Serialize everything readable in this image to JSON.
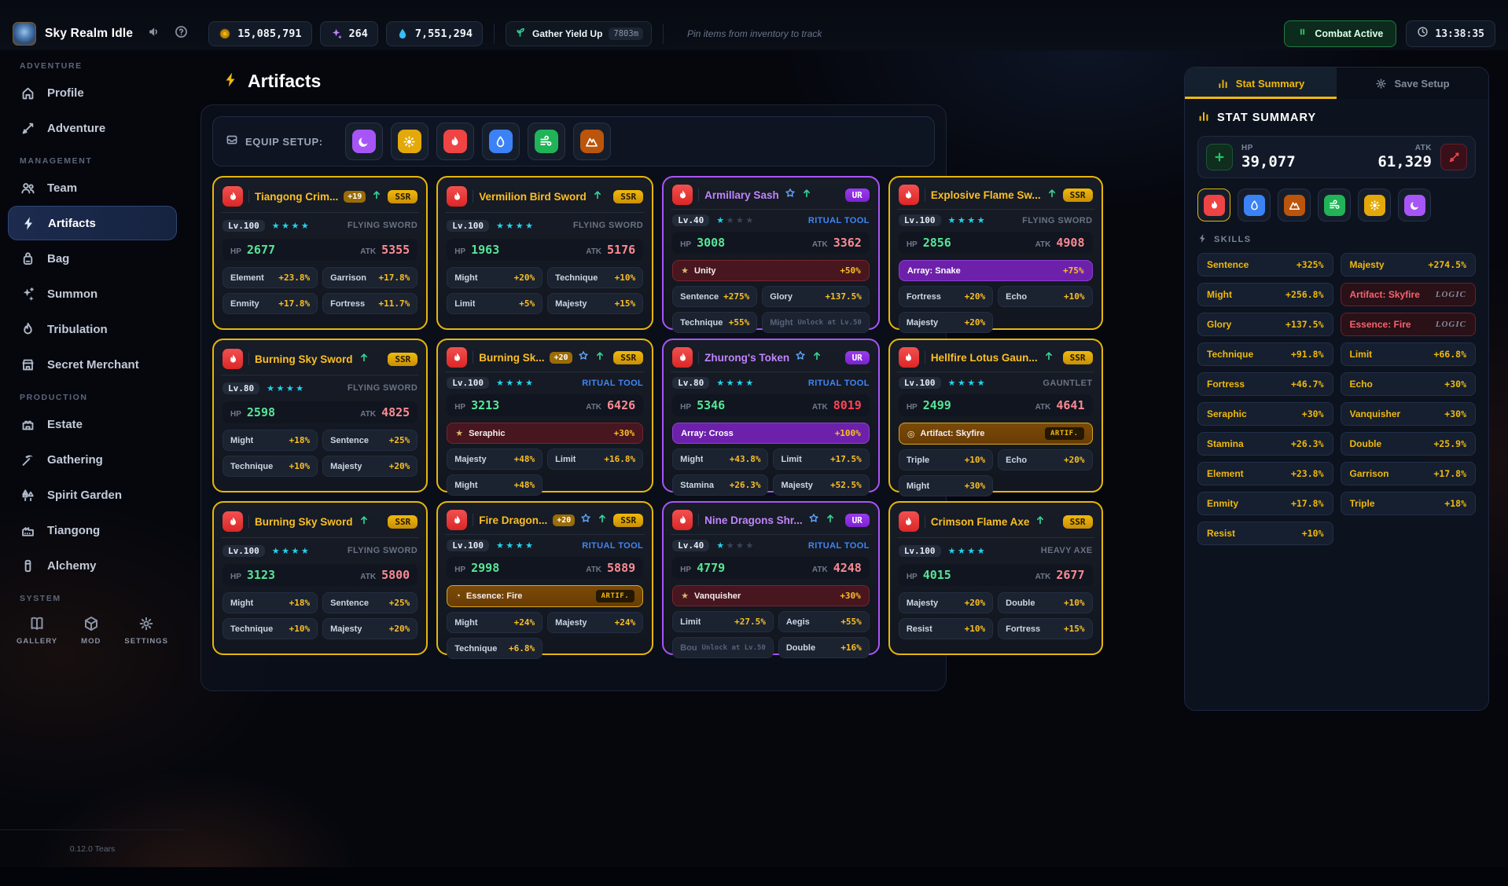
{
  "app": {
    "title": "Sky Realm Idle",
    "version": "0.12.0 Tears"
  },
  "element_colors": {
    "fire": "#ef4444",
    "water": "#3b82f6",
    "wind": "#21b357",
    "sun": "#e3a90a",
    "moon": "#a855f7",
    "earth": "#bb550b"
  },
  "topbar": {
    "currencies": [
      {
        "icon": "coin",
        "value": "15,085,791"
      },
      {
        "icon": "spark",
        "value": "264"
      },
      {
        "icon": "droplet",
        "value": "7,551,294"
      }
    ],
    "gather": {
      "label": "Gather Yield Up",
      "badge": "7803m"
    },
    "pin_hint": "Pin items from inventory to track",
    "combat": {
      "label": "Combat Active"
    },
    "clock": "13:38:35"
  },
  "sidebar": {
    "sections": [
      {
        "label": "ADVENTURE",
        "items": [
          {
            "icon": "home",
            "label": "Profile"
          },
          {
            "icon": "sword",
            "label": "Adventure"
          }
        ]
      },
      {
        "label": "MANAGEMENT",
        "items": [
          {
            "icon": "team",
            "label": "Team"
          },
          {
            "icon": "zap",
            "label": "Artifacts",
            "active": true
          },
          {
            "icon": "bag",
            "label": "Bag"
          },
          {
            "icon": "sparkles",
            "label": "Summon"
          },
          {
            "icon": "flame",
            "label": "Tribulation"
          },
          {
            "icon": "store",
            "label": "Secret Merchant"
          }
        ]
      },
      {
        "label": "PRODUCTION",
        "items": [
          {
            "icon": "castle",
            "label": "Estate"
          },
          {
            "icon": "pickaxe",
            "label": "Gathering"
          },
          {
            "icon": "tree",
            "label": "Spirit Garden"
          },
          {
            "icon": "factory",
            "label": "Tiangong"
          },
          {
            "icon": "flask",
            "label": "Alchemy"
          }
        ]
      }
    ],
    "system": {
      "label": "SYSTEM",
      "items": [
        {
          "icon": "book",
          "label": "GALLERY"
        },
        {
          "icon": "box",
          "label": "MOD"
        },
        {
          "icon": "gear",
          "label": "SETTINGS"
        }
      ]
    }
  },
  "main": {
    "title": "Artifacts",
    "equip_setup_label": "EQUIP SETUP:",
    "equip_elements": [
      "moon",
      "sun",
      "fire",
      "water",
      "wind",
      "earth"
    ],
    "cards": [
      {
        "name": "Tiangong Crim...",
        "rarity": "SSR",
        "element": "fire",
        "plus": "+19",
        "fav": false,
        "up": true,
        "level": "Lv.100",
        "stars": 4,
        "stars_max": 4,
        "type": "FLYING SWORD",
        "type_highlight": false,
        "hp": "2677",
        "atk": "5355",
        "atk_bright": false,
        "special": null,
        "stats": [
          {
            "n": "Element",
            "v": "+23.8%"
          },
          {
            "n": "Garrison",
            "v": "+17.8%"
          },
          {
            "n": "Enmity",
            "v": "+17.8%"
          },
          {
            "n": "Fortress",
            "v": "+11.7%"
          }
        ]
      },
      {
        "name": "Vermilion Bird Sword",
        "rarity": "SSR",
        "element": "fire",
        "plus": null,
        "fav": false,
        "up": true,
        "level": "Lv.100",
        "stars": 4,
        "stars_max": 4,
        "type": "FLYING SWORD",
        "type_highlight": false,
        "hp": "1963",
        "atk": "5176",
        "atk_bright": false,
        "special": null,
        "stats": [
          {
            "n": "Might",
            "v": "+20%"
          },
          {
            "n": "Technique",
            "v": "+10%"
          },
          {
            "n": "Limit",
            "v": "+5%"
          },
          {
            "n": "Majesty",
            "v": "+15%"
          }
        ]
      },
      {
        "name": "Armillary Sash",
        "rarity": "UR",
        "element": "fire",
        "plus": null,
        "fav": true,
        "up": true,
        "level": "Lv.40",
        "stars": 1,
        "stars_max": 4,
        "type": "RITUAL TOOL",
        "type_highlight": true,
        "hp": "3008",
        "atk": "3362",
        "atk_bright": false,
        "special": {
          "kind": "red",
          "icon": "star",
          "label": "Unity",
          "value": "+50%"
        },
        "stats": [
          {
            "n": "Sentence",
            "v": "+275%"
          },
          {
            "n": "Glory",
            "v": "+137.5%"
          },
          {
            "n": "Technique",
            "v": "+55%"
          },
          {
            "n": "Might",
            "v": "Unlock at Lv.50",
            "locked": true
          }
        ]
      },
      {
        "name": "Explosive Flame Sw...",
        "rarity": "SSR",
        "element": "fire",
        "plus": null,
        "fav": false,
        "up": true,
        "level": "Lv.100",
        "stars": 4,
        "stars_max": 4,
        "type": "FLYING SWORD",
        "type_highlight": false,
        "hp": "2856",
        "atk": "4908",
        "atk_bright": false,
        "special": {
          "kind": "purple",
          "icon": null,
          "label": "Array: Snake",
          "value": "+75%"
        },
        "stats": [
          {
            "n": "Fortress",
            "v": "+20%"
          },
          {
            "n": "Echo",
            "v": "+10%"
          },
          {
            "n": "Majesty",
            "v": "+20%"
          }
        ]
      },
      {
        "name": "Burning Sky Sword",
        "rarity": "SSR",
        "element": "fire",
        "plus": null,
        "fav": false,
        "up": true,
        "level": "Lv.80",
        "stars": 4,
        "stars_max": 4,
        "type": "FLYING SWORD",
        "type_highlight": false,
        "hp": "2598",
        "atk": "4825",
        "atk_bright": false,
        "special": null,
        "stats": [
          {
            "n": "Might",
            "v": "+18%"
          },
          {
            "n": "Sentence",
            "v": "+25%"
          },
          {
            "n": "Technique",
            "v": "+10%"
          },
          {
            "n": "Majesty",
            "v": "+20%"
          }
        ]
      },
      {
        "name": "Burning Sk...",
        "rarity": "SSR",
        "element": "fire",
        "plus": "+20",
        "fav": true,
        "up": true,
        "level": "Lv.100",
        "stars": 4,
        "stars_max": 4,
        "type": "RITUAL TOOL",
        "type_highlight": true,
        "hp": "3213",
        "atk": "6426",
        "atk_bright": false,
        "special": {
          "kind": "red",
          "icon": "star",
          "label": "Seraphic",
          "value": "+30%"
        },
        "stats": [
          {
            "n": "Majesty",
            "v": "+48%"
          },
          {
            "n": "Limit",
            "v": "+16.8%"
          },
          {
            "n": "Might",
            "v": "+48%"
          }
        ]
      },
      {
        "name": "Zhurong's Token",
        "rarity": "UR",
        "element": "fire",
        "plus": null,
        "fav": true,
        "up": true,
        "level": "Lv.80",
        "stars": 4,
        "stars_max": 4,
        "type": "RITUAL TOOL",
        "type_highlight": true,
        "hp": "5346",
        "atk": "8019",
        "atk_bright": true,
        "special": {
          "kind": "purple",
          "icon": null,
          "label": "Array: Cross",
          "value": "+100%"
        },
        "stats": [
          {
            "n": "Might",
            "v": "+43.8%"
          },
          {
            "n": "Limit",
            "v": "+17.5%"
          },
          {
            "n": "Stamina",
            "v": "+26.3%"
          },
          {
            "n": "Majesty",
            "v": "+52.5%"
          }
        ]
      },
      {
        "name": "Hellfire Lotus Gaun...",
        "rarity": "SSR",
        "element": "fire",
        "plus": null,
        "fav": false,
        "up": true,
        "level": "Lv.100",
        "stars": 4,
        "stars_max": 4,
        "type": "GAUNTLET",
        "type_highlight": false,
        "hp": "2499",
        "atk": "4641",
        "atk_bright": false,
        "special": {
          "kind": "artifact",
          "icon": "ring",
          "label": "Artifact: Skyfire",
          "value": "ARTIF."
        },
        "stats": [
          {
            "n": "Triple",
            "v": "+10%"
          },
          {
            "n": "Echo",
            "v": "+20%"
          },
          {
            "n": "Might",
            "v": "+30%"
          }
        ]
      },
      {
        "name": "Burning Sky Sword",
        "rarity": "SSR",
        "element": "fire",
        "plus": null,
        "fav": false,
        "up": true,
        "level": "Lv.100",
        "stars": 4,
        "stars_max": 4,
        "type": "FLYING SWORD",
        "type_highlight": false,
        "hp": "3123",
        "atk": "5800",
        "atk_bright": false,
        "special": null,
        "stats": [
          {
            "n": "Might",
            "v": "+18%"
          },
          {
            "n": "Sentence",
            "v": "+25%"
          },
          {
            "n": "Technique",
            "v": "+10%"
          },
          {
            "n": "Majesty",
            "v": "+20%"
          }
        ]
      },
      {
        "name": "Fire Dragon...",
        "rarity": "SSR",
        "element": "fire",
        "plus": "+20",
        "fav": true,
        "up": true,
        "level": "Lv.100",
        "stars": 4,
        "stars_max": 4,
        "type": "RITUAL TOOL",
        "type_highlight": true,
        "hp": "2998",
        "atk": "5889",
        "atk_bright": false,
        "special": {
          "kind": "artifact",
          "icon": "clock",
          "label": "Essence: Fire",
          "value": "ARTIF."
        },
        "stats": [
          {
            "n": "Might",
            "v": "+24%"
          },
          {
            "n": "Majesty",
            "v": "+24%"
          },
          {
            "n": "Technique",
            "v": "+6.8%"
          }
        ]
      },
      {
        "name": "Nine Dragons Shr...",
        "rarity": "UR",
        "element": "fire",
        "plus": null,
        "fav": true,
        "up": true,
        "level": "Lv.40",
        "stars": 1,
        "stars_max": 4,
        "type": "RITUAL TOOL",
        "type_highlight": true,
        "hp": "4779",
        "atk": "4248",
        "atk_bright": false,
        "special": {
          "kind": "red",
          "icon": "star",
          "label": "Vanquisher",
          "value": "+30%"
        },
        "stats": [
          {
            "n": "Limit",
            "v": "+27.5%"
          },
          {
            "n": "Aegis",
            "v": "+55%"
          },
          {
            "n": "Bou",
            "v": "Unlock at Lv.50",
            "locked": true
          },
          {
            "n": "Double",
            "v": "+16%"
          }
        ]
      },
      {
        "name": "Crimson Flame Axe",
        "rarity": "SSR",
        "element": "fire",
        "plus": null,
        "fav": false,
        "up": true,
        "level": "Lv.100",
        "stars": 4,
        "stars_max": 4,
        "type": "HEAVY AXE",
        "type_highlight": false,
        "hp": "4015",
        "atk": "2677",
        "atk_bright": false,
        "special": null,
        "stats": [
          {
            "n": "Majesty",
            "v": "+20%"
          },
          {
            "n": "Double",
            "v": "+10%"
          },
          {
            "n": "Resist",
            "v": "+10%"
          },
          {
            "n": "Fortress",
            "v": "+15%"
          }
        ]
      }
    ]
  },
  "panel": {
    "tabs": [
      {
        "icon": "chart",
        "label": "Stat Summary",
        "active": true
      },
      {
        "icon": "gear",
        "label": "Save Setup",
        "active": false
      }
    ],
    "heading": "STAT SUMMARY",
    "hp": {
      "label": "HP",
      "value": "39,077"
    },
    "atk": {
      "label": "ATK",
      "value": "61,329"
    },
    "elements": [
      "fire",
      "water",
      "earth",
      "wind",
      "sun",
      "moon"
    ],
    "selected_element": "fire",
    "skills_label": "SKILLS",
    "skills_left": [
      {
        "name": "Sentence",
        "value": "+325%"
      },
      {
        "name": "Might",
        "value": "+256.8%"
      },
      {
        "name": "Glory",
        "value": "+137.5%"
      },
      {
        "name": "Technique",
        "value": "+91.8%"
      },
      {
        "name": "Fortress",
        "value": "+46.7%"
      },
      {
        "name": "Seraphic",
        "value": "+30%"
      },
      {
        "name": "Stamina",
        "value": "+26.3%"
      },
      {
        "name": "Element",
        "value": "+23.8%"
      },
      {
        "name": "Enmity",
        "value": "+17.8%"
      },
      {
        "name": "Resist",
        "value": "+10%"
      }
    ],
    "skills_right": [
      {
        "name": "Majesty",
        "value": "+274.5%"
      },
      {
        "name": "Artifact: Skyfire",
        "value": "LOGIC",
        "logic": true
      },
      {
        "name": "Essence: Fire",
        "value": "LOGIC",
        "logic": true
      },
      {
        "name": "Limit",
        "value": "+66.8%"
      },
      {
        "name": "Echo",
        "value": "+30%"
      },
      {
        "name": "Vanquisher",
        "value": "+30%"
      },
      {
        "name": "Double",
        "value": "+25.9%"
      },
      {
        "name": "Garrison",
        "value": "+17.8%"
      },
      {
        "name": "Triple",
        "value": "+18%"
      }
    ]
  }
}
